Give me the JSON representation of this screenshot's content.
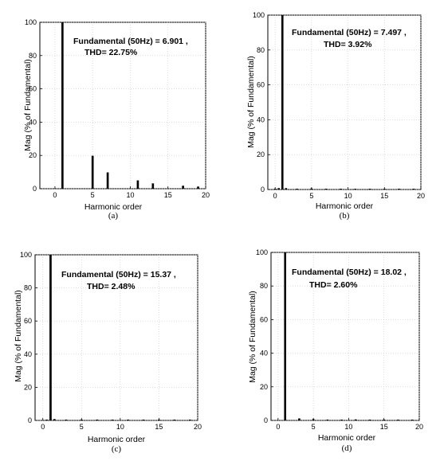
{
  "chart_data": [
    {
      "type": "bar",
      "caption": "(a)",
      "annotation_line1": "Fundamental (50Hz) = 6.901 ,",
      "annotation_line2": "THD= 22.75%",
      "xlabel": "Harmonic order",
      "ylabel": "Mag (% of Fundamental)",
      "xlim": [
        -2,
        20
      ],
      "ylim": [
        0,
        100
      ],
      "xticks": [
        0,
        5,
        10,
        15,
        20
      ],
      "yticks": [
        0,
        20,
        40,
        60,
        80,
        100
      ],
      "grid": true,
      "x": [
        1,
        5,
        7,
        11,
        13,
        17,
        19
      ],
      "values": [
        100,
        19.8,
        9.8,
        5.0,
        3.2,
        1.8,
        1.3
      ]
    },
    {
      "type": "bar",
      "caption": "(b)",
      "annotation_line1": "Fundamental (50Hz) = 7.497 ,",
      "annotation_line2": "THD= 3.92%",
      "xlabel": "Harmonic order",
      "ylabel": "Mag (% of Fundamental)",
      "xlim": [
        -1,
        20
      ],
      "ylim": [
        0,
        100
      ],
      "xticks": [
        0,
        5,
        10,
        15,
        20
      ],
      "yticks": [
        0,
        20,
        40,
        60,
        80,
        100
      ],
      "grid": true,
      "x": [
        0,
        0.5,
        1,
        1.5,
        3,
        5,
        7,
        9,
        11,
        13,
        15,
        17,
        19
      ],
      "values": [
        0.3,
        0.8,
        100,
        0.8,
        0.4,
        0.6,
        0.4,
        0.3,
        0.3,
        0.3,
        0.2,
        0.2,
        0.2
      ]
    },
    {
      "type": "bar",
      "caption": "(c)",
      "annotation_line1": "Fundamental (50Hz) = 15.37 ,",
      "annotation_line2": "THD= 2.48%",
      "xlabel": "Harmonic order",
      "ylabel": "Mag (% of Fundamental)",
      "xlim": [
        -1,
        20
      ],
      "ylim": [
        0,
        100
      ],
      "xticks": [
        0,
        5,
        10,
        15,
        20
      ],
      "yticks": [
        0,
        20,
        40,
        60,
        80,
        100
      ],
      "grid": true,
      "x": [
        0.5,
        1,
        1.5,
        3,
        5,
        7,
        9,
        11,
        13,
        15,
        17,
        19
      ],
      "values": [
        0.3,
        100,
        0.8,
        0.3,
        0.5,
        0.4,
        0.3,
        0.3,
        0.2,
        0.2,
        0.2,
        0.2
      ]
    },
    {
      "type": "bar",
      "caption": "(d)",
      "annotation_line1": "Fundamental (50Hz) = 18.02 ,",
      "annotation_line2": "THD= 2.60%",
      "xlabel": "Harmonic order",
      "ylabel": "Mag (% of Fundamental)",
      "xlim": [
        -1,
        20
      ],
      "ylim": [
        0,
        100
      ],
      "xticks": [
        0,
        5,
        10,
        15,
        20
      ],
      "yticks": [
        0,
        20,
        40,
        60,
        80,
        100
      ],
      "grid": true,
      "x": [
        1,
        3,
        5,
        7,
        9,
        11,
        13,
        15,
        17,
        19
      ],
      "values": [
        100,
        1.2,
        0.8,
        0.5,
        0.4,
        0.6,
        0.4,
        0.3,
        0.3,
        0.2
      ]
    }
  ]
}
